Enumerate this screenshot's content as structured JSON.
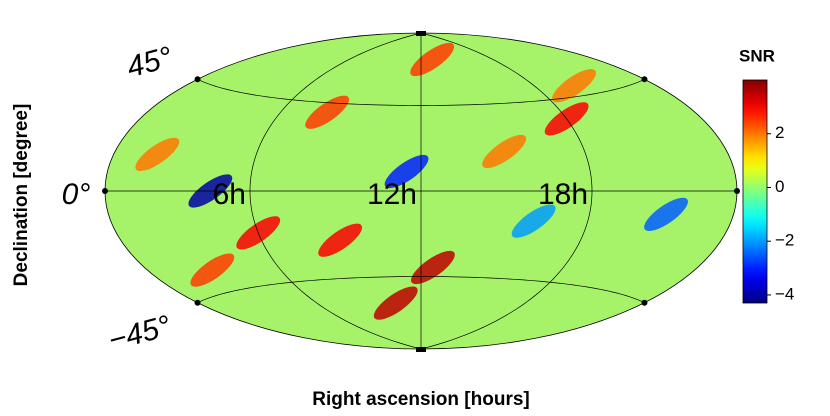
{
  "chart_data": {
    "type": "skymap",
    "xlabel": "Right ascension [hours]",
    "ylabel": "Declination [degree]",
    "ra_grid": [
      {
        "value": 6,
        "label": "6h"
      },
      {
        "value": 12,
        "label": "12h"
      },
      {
        "value": 18,
        "label": "18h"
      }
    ],
    "dec_grid": [
      {
        "value": 45,
        "label": "45°"
      },
      {
        "value": 0,
        "label": "0°"
      },
      {
        "value": -45,
        "label": "−45°"
      }
    ],
    "colorbar": {
      "title": "SNR",
      "clim": [
        -4.3,
        4
      ],
      "ticks": [
        {
          "value": 2,
          "label": "2"
        },
        {
          "value": 0,
          "label": "0"
        },
        {
          "value": -2,
          "label": "−2"
        },
        {
          "value": -4,
          "label": "−4"
        }
      ]
    },
    "spots": {
      "ra": [
        10.5,
        18,
        4.5,
        6,
        9,
        11.5,
        13,
        12.5,
        2,
        21,
        15,
        3,
        8,
        16,
        20
      ],
      "dec": [
        -60,
        35,
        0,
        -20,
        -25,
        10,
        72,
        -40,
        15,
        -10,
        20,
        -35,
        40,
        -15,
        50
      ],
      "snr": [
        3.5,
        3,
        -4,
        3,
        3,
        -3,
        2.5,
        3.5,
        2,
        -2.5,
        2,
        2.5,
        2.5,
        -2,
        2
      ]
    }
  }
}
